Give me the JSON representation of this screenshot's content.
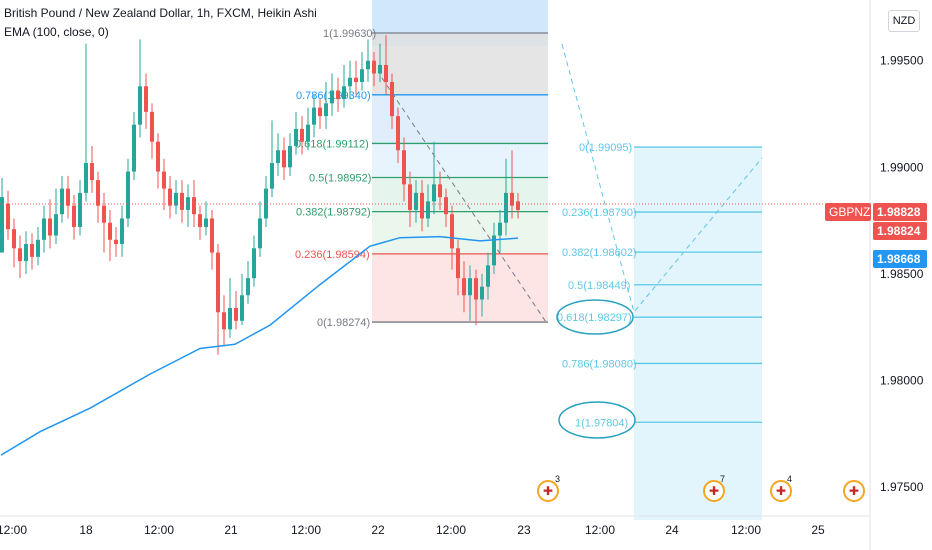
{
  "legend": {
    "title": "British Pound / New Zealand Dollar, 1h, FXCM, Heikin Ashi",
    "indicator": "EMA (100, close, 0)"
  },
  "currency_button": "NZD",
  "price_axis": {
    "ticks": [
      "1.99500",
      "1.99000",
      "1.98500",
      "1.98000",
      "1.97500"
    ],
    "symbol_tag": "GBPNZD",
    "tags": [
      "1.98828",
      "1.98824",
      "1.98668"
    ]
  },
  "time_axis": {
    "ticks": [
      "12:00",
      "18",
      "12:00",
      "21",
      "12:00",
      "22",
      "12:00",
      "23",
      "12:00",
      "24",
      "12:00",
      "25"
    ]
  },
  "fib_retracement": {
    "labels": [
      "1(1.99630)",
      "0.786(1.99340)",
      "0.618(1.99112)",
      "0.5(1.98952)",
      "0.382(1.98792)",
      "0.236(1.98594)",
      "0(1.98274)"
    ]
  },
  "fib_extension": {
    "labels": [
      "0(1.99095)",
      "0.236(1.98790)",
      "0.382(1.98602)",
      "0.5(1.98449)",
      "0.618(1.98297)",
      "0.786(1.98080)",
      "1(1.97804)"
    ]
  },
  "events": [
    {
      "icon": "uk-flag-icon",
      "count": "3"
    },
    {
      "icon": "uk-flag-icon",
      "count": "7"
    },
    {
      "icon": "uk-flag-icon",
      "count": "4"
    },
    {
      "icon": "uk-flag-icon",
      "count": ""
    }
  ],
  "colors": {
    "bull": "#26a69a",
    "bear": "#ef5350",
    "ema": "#2196f3",
    "fib_ext": "#5ec8e8"
  },
  "chart_data": {
    "type": "candlestick",
    "style": "Heikin Ashi",
    "symbol": "GBPNZD",
    "timeframe": "1h",
    "ylim": [
      1.9742,
      1.9981
    ],
    "last_price": 1.98828,
    "ema_100_last": 1.98668,
    "ema_100": [
      [
        1,
        1.9765
      ],
      [
        40,
        1.9776
      ],
      [
        90,
        1.9787
      ],
      [
        150,
        1.9803
      ],
      [
        200,
        1.9815
      ],
      [
        235,
        1.9817
      ],
      [
        270,
        1.9826
      ],
      [
        320,
        1.9845
      ],
      [
        370,
        1.9863
      ],
      [
        400,
        1.9867
      ],
      [
        440,
        1.98675
      ],
      [
        480,
        1.98655
      ],
      [
        518,
        1.98668
      ]
    ]
  }
}
